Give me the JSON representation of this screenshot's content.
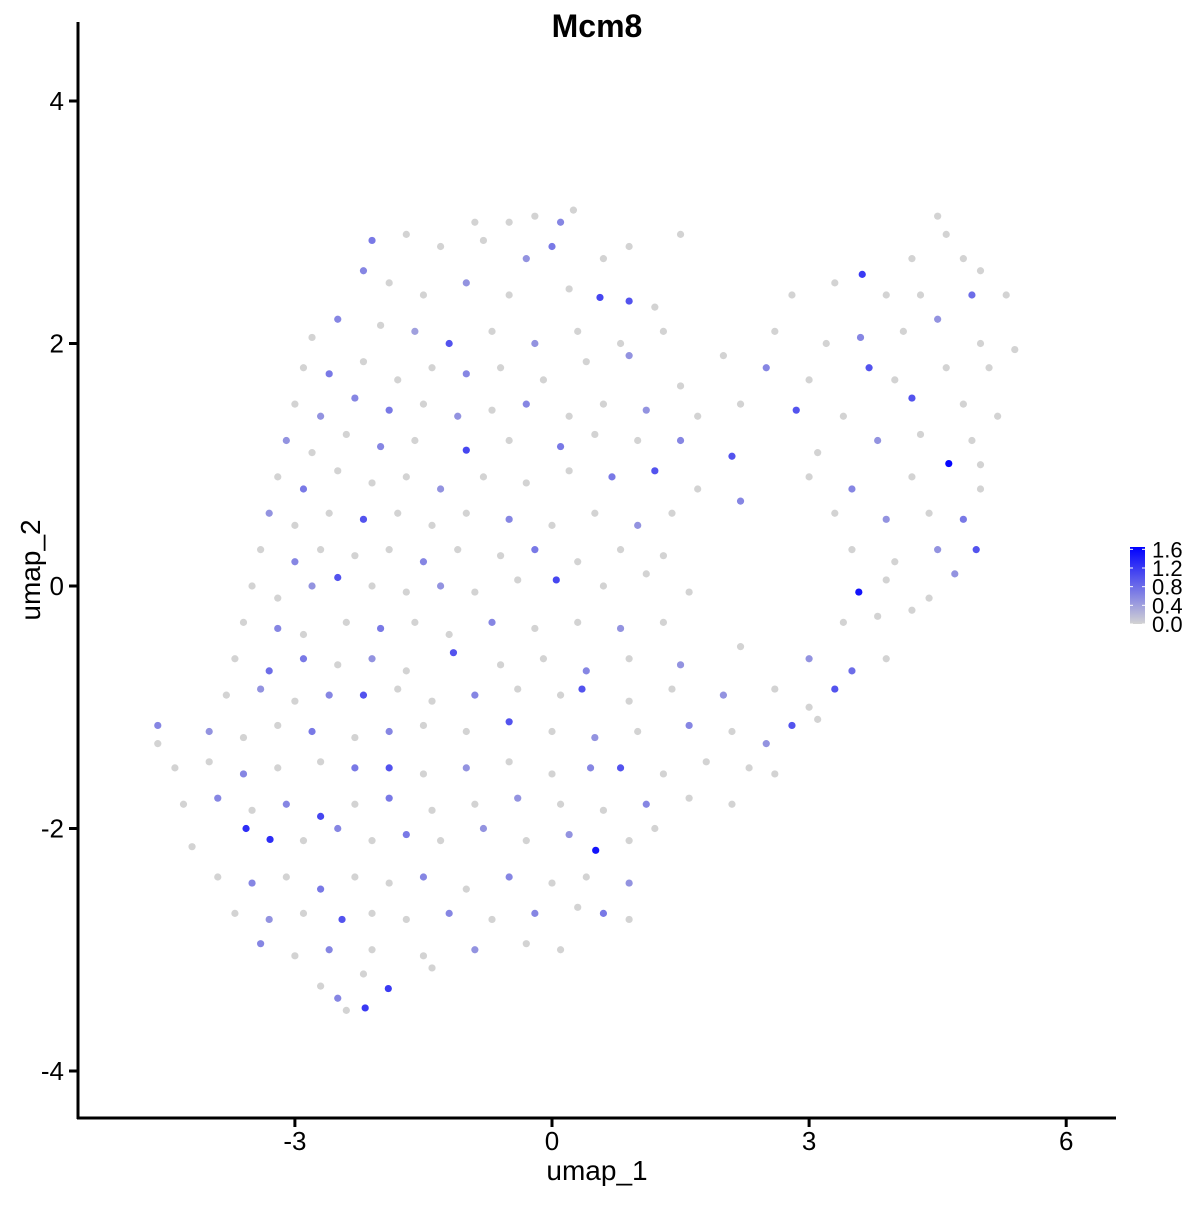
{
  "chart_data": {
    "type": "scatter",
    "title": "Mcm8",
    "xlabel": "umap_1",
    "ylabel": "umap_2",
    "xlim": [
      -5.53,
      6.57
    ],
    "ylim": [
      -4.39,
      4.65
    ],
    "xticks": [
      -3,
      0,
      3,
      6
    ],
    "yticks": [
      -4,
      -2,
      0,
      2,
      4
    ],
    "grid": false,
    "legend": {
      "placement": "right",
      "type": "colorbar",
      "ticks": [
        "0.0",
        "0.4",
        "0.8",
        "1.2",
        "1.6"
      ],
      "tick_values": [
        0,
        0.4,
        0.8,
        1.2,
        1.6
      ],
      "range": [
        0,
        1.65
      ],
      "low_color": "#d3d3d3",
      "high_color": "#0000ff"
    },
    "point_format": [
      "umap_1",
      "umap_2",
      "expression"
    ],
    "points": [
      [
        -0.5,
        3.0,
        0
      ],
      [
        -0.2,
        3.05,
        0
      ],
      [
        0.1,
        3.0,
        0.6
      ],
      [
        0.25,
        3.1,
        0
      ],
      [
        -0.9,
        3.0,
        0
      ],
      [
        4.5,
        3.05,
        0
      ],
      [
        4.6,
        2.9,
        0
      ],
      [
        -2.1,
        2.85,
        0.7
      ],
      [
        -1.7,
        2.9,
        0
      ],
      [
        -1.3,
        2.8,
        0
      ],
      [
        -0.8,
        2.85,
        0
      ],
      [
        -0.3,
        2.7,
        0.5
      ],
      [
        0.0,
        2.8,
        0.7
      ],
      [
        0.6,
        2.7,
        0
      ],
      [
        0.9,
        2.8,
        0
      ],
      [
        1.5,
        2.9,
        0
      ],
      [
        4.2,
        2.7,
        0
      ],
      [
        4.8,
        2.7,
        0
      ],
      [
        5.0,
        2.6,
        0
      ],
      [
        -2.2,
        2.6,
        0.6
      ],
      [
        -1.9,
        2.5,
        0
      ],
      [
        -1.5,
        2.4,
        0
      ],
      [
        -1.0,
        2.5,
        0.5
      ],
      [
        -0.5,
        2.4,
        0
      ],
      [
        0.2,
        2.45,
        0
      ],
      [
        0.56,
        2.38,
        1.1
      ],
      [
        0.9,
        2.35,
        1.0
      ],
      [
        1.2,
        2.3,
        0
      ],
      [
        3.3,
        2.5,
        0
      ],
      [
        3.62,
        2.57,
        1.2
      ],
      [
        3.9,
        2.4,
        0
      ],
      [
        4.3,
        2.4,
        0
      ],
      [
        4.9,
        2.4,
        0.8
      ],
      [
        5.3,
        2.4,
        0
      ],
      [
        2.8,
        2.4,
        0
      ],
      [
        -2.8,
        2.05,
        0
      ],
      [
        -2.5,
        2.2,
        0.6
      ],
      [
        -2.0,
        2.15,
        0
      ],
      [
        -1.6,
        2.1,
        0.4
      ],
      [
        -1.2,
        2.0,
        1.0
      ],
      [
        -0.7,
        2.1,
        0
      ],
      [
        -0.2,
        2.0,
        0.5
      ],
      [
        0.3,
        2.1,
        0
      ],
      [
        0.8,
        2.0,
        0
      ],
      [
        1.3,
        2.1,
        0
      ],
      [
        2.6,
        2.1,
        0
      ],
      [
        3.2,
        2.0,
        0
      ],
      [
        3.6,
        2.05,
        0.6
      ],
      [
        4.1,
        2.1,
        0
      ],
      [
        4.5,
        2.2,
        0.5
      ],
      [
        5.0,
        2.0,
        0
      ],
      [
        5.4,
        1.95,
        0
      ],
      [
        -2.9,
        1.8,
        0
      ],
      [
        -2.6,
        1.75,
        0.7
      ],
      [
        -2.2,
        1.85,
        0
      ],
      [
        -1.8,
        1.7,
        0
      ],
      [
        -1.4,
        1.8,
        0
      ],
      [
        -1.0,
        1.75,
        0.6
      ],
      [
        -0.6,
        1.8,
        0
      ],
      [
        -0.1,
        1.7,
        0
      ],
      [
        0.4,
        1.85,
        0
      ],
      [
        0.9,
        1.9,
        0.5
      ],
      [
        1.5,
        1.65,
        0
      ],
      [
        2.0,
        1.9,
        0
      ],
      [
        2.5,
        1.8,
        0.6
      ],
      [
        3.0,
        1.7,
        0
      ],
      [
        3.7,
        1.8,
        1.0
      ],
      [
        4.0,
        1.7,
        0
      ],
      [
        4.6,
        1.8,
        0
      ],
      [
        5.1,
        1.8,
        0
      ],
      [
        -3.0,
        1.5,
        0
      ],
      [
        -2.7,
        1.4,
        0.5
      ],
      [
        -2.3,
        1.55,
        0.6
      ],
      [
        -1.9,
        1.45,
        0.7
      ],
      [
        -1.5,
        1.5,
        0
      ],
      [
        -1.1,
        1.4,
        0.5
      ],
      [
        -0.7,
        1.45,
        0
      ],
      [
        -0.3,
        1.5,
        0.6
      ],
      [
        0.2,
        1.4,
        0
      ],
      [
        0.6,
        1.5,
        0
      ],
      [
        1.1,
        1.45,
        0.5
      ],
      [
        1.7,
        1.4,
        0
      ],
      [
        2.2,
        1.5,
        0
      ],
      [
        2.85,
        1.45,
        1.0
      ],
      [
        3.4,
        1.4,
        0
      ],
      [
        4.2,
        1.55,
        1.0
      ],
      [
        4.8,
        1.5,
        0
      ],
      [
        5.2,
        1.4,
        0
      ],
      [
        -3.1,
        1.2,
        0.5
      ],
      [
        -2.8,
        1.1,
        0
      ],
      [
        -2.4,
        1.25,
        0
      ],
      [
        -2.0,
        1.15,
        0.6
      ],
      [
        -1.6,
        1.2,
        0
      ],
      [
        -1.0,
        1.12,
        1.1
      ],
      [
        -0.5,
        1.2,
        0
      ],
      [
        0.1,
        1.15,
        0.7
      ],
      [
        0.5,
        1.25,
        0
      ],
      [
        1.0,
        1.2,
        0
      ],
      [
        1.5,
        1.2,
        0.6
      ],
      [
        2.1,
        1.07,
        1.0
      ],
      [
        3.1,
        1.1,
        0
      ],
      [
        3.8,
        1.2,
        0.5
      ],
      [
        4.3,
        1.25,
        0
      ],
      [
        4.9,
        1.2,
        0
      ],
      [
        -3.2,
        0.9,
        0
      ],
      [
        -2.9,
        0.8,
        0.7
      ],
      [
        -2.5,
        0.95,
        0
      ],
      [
        -2.1,
        0.85,
        0
      ],
      [
        -1.7,
        0.9,
        0
      ],
      [
        -1.3,
        0.8,
        0.5
      ],
      [
        -0.8,
        0.9,
        0
      ],
      [
        -0.3,
        0.85,
        0
      ],
      [
        0.2,
        0.95,
        0
      ],
      [
        0.7,
        0.9,
        0.7
      ],
      [
        1.2,
        0.95,
        1.0
      ],
      [
        1.7,
        0.8,
        0
      ],
      [
        2.2,
        0.7,
        0.6
      ],
      [
        3.0,
        0.9,
        0
      ],
      [
        3.5,
        0.8,
        0.6
      ],
      [
        4.63,
        1.01,
        1.6
      ],
      [
        4.2,
        0.9,
        0
      ],
      [
        5.0,
        1.0,
        0
      ],
      [
        -3.3,
        0.6,
        0.5
      ],
      [
        -3.0,
        0.5,
        0
      ],
      [
        -2.6,
        0.6,
        0
      ],
      [
        -2.2,
        0.55,
        1.0
      ],
      [
        -1.8,
        0.6,
        0
      ],
      [
        -1.4,
        0.5,
        0
      ],
      [
        -1.0,
        0.6,
        0
      ],
      [
        -0.5,
        0.55,
        0.6
      ],
      [
        0.0,
        0.5,
        0
      ],
      [
        0.5,
        0.6,
        0
      ],
      [
        1.0,
        0.5,
        0.5
      ],
      [
        1.4,
        0.6,
        0
      ],
      [
        3.3,
        0.6,
        0
      ],
      [
        3.9,
        0.55,
        0.5
      ],
      [
        4.4,
        0.6,
        0
      ],
      [
        4.8,
        0.55,
        0.7
      ],
      [
        5.0,
        0.8,
        0
      ],
      [
        -3.4,
        0.3,
        0
      ],
      [
        -3.0,
        0.2,
        0.6
      ],
      [
        -2.7,
        0.3,
        0
      ],
      [
        -2.3,
        0.25,
        0
      ],
      [
        -1.9,
        0.3,
        0
      ],
      [
        -1.5,
        0.2,
        0.6
      ],
      [
        -1.1,
        0.3,
        0
      ],
      [
        -0.6,
        0.25,
        0
      ],
      [
        -0.2,
        0.3,
        0.7
      ],
      [
        0.3,
        0.2,
        0
      ],
      [
        0.8,
        0.3,
        0
      ],
      [
        1.3,
        0.25,
        0
      ],
      [
        3.5,
        0.3,
        0
      ],
      [
        4.0,
        0.2,
        0
      ],
      [
        4.5,
        0.3,
        0.5
      ],
      [
        4.95,
        0.3,
        1.0
      ],
      [
        -3.5,
        0.0,
        0
      ],
      [
        -3.2,
        -0.1,
        0
      ],
      [
        -2.8,
        0.0,
        0.5
      ],
      [
        -2.5,
        0.07,
        1.0
      ],
      [
        -2.1,
        0.0,
        0
      ],
      [
        -1.7,
        -0.05,
        0
      ],
      [
        -1.3,
        0.0,
        0.5
      ],
      [
        -0.9,
        -0.05,
        0
      ],
      [
        -0.4,
        0.05,
        0
      ],
      [
        0.05,
        0.05,
        1.1
      ],
      [
        0.6,
        0.0,
        0
      ],
      [
        1.1,
        0.1,
        0
      ],
      [
        1.6,
        -0.05,
        0
      ],
      [
        3.58,
        -0.05,
        1.5
      ],
      [
        3.9,
        0.05,
        0
      ],
      [
        4.4,
        -0.1,
        0
      ],
      [
        4.7,
        0.1,
        0.5
      ],
      [
        -3.6,
        -0.3,
        0
      ],
      [
        -3.2,
        -0.35,
        0.6
      ],
      [
        -2.9,
        -0.4,
        0
      ],
      [
        -2.4,
        -0.3,
        0
      ],
      [
        -2.0,
        -0.35,
        0.7
      ],
      [
        -1.6,
        -0.3,
        0
      ],
      [
        -1.2,
        -0.4,
        0
      ],
      [
        -0.7,
        -0.3,
        0.6
      ],
      [
        -0.2,
        -0.35,
        0
      ],
      [
        0.3,
        -0.3,
        0
      ],
      [
        0.8,
        -0.35,
        0.5
      ],
      [
        1.3,
        -0.3,
        0
      ],
      [
        3.4,
        -0.3,
        0
      ],
      [
        3.8,
        -0.25,
        0
      ],
      [
        4.2,
        -0.2,
        0
      ],
      [
        -3.7,
        -0.6,
        0
      ],
      [
        -3.3,
        -0.7,
        0.8
      ],
      [
        -2.9,
        -0.6,
        0.7
      ],
      [
        -2.5,
        -0.65,
        0
      ],
      [
        -2.1,
        -0.6,
        0.5
      ],
      [
        -1.7,
        -0.7,
        0
      ],
      [
        -1.15,
        -0.55,
        1.0
      ],
      [
        -0.6,
        -0.65,
        0
      ],
      [
        -0.1,
        -0.6,
        0
      ],
      [
        0.4,
        -0.7,
        0.6
      ],
      [
        0.9,
        -0.6,
        0
      ],
      [
        1.5,
        -0.65,
        0.5
      ],
      [
        2.2,
        -0.5,
        0
      ],
      [
        3.0,
        -0.6,
        0.5
      ],
      [
        3.5,
        -0.7,
        0.8
      ],
      [
        3.9,
        -0.6,
        0
      ],
      [
        -3.8,
        -0.9,
        0
      ],
      [
        -3.4,
        -0.85,
        0.5
      ],
      [
        -3.0,
        -0.95,
        0
      ],
      [
        -2.6,
        -0.9,
        0.6
      ],
      [
        -2.2,
        -0.9,
        1.0
      ],
      [
        -1.8,
        -0.85,
        0
      ],
      [
        -1.4,
        -0.95,
        0
      ],
      [
        -0.9,
        -0.9,
        0.6
      ],
      [
        -0.4,
        -0.85,
        0
      ],
      [
        0.1,
        -0.9,
        0
      ],
      [
        0.35,
        -0.85,
        1.0
      ],
      [
        0.9,
        -0.95,
        0
      ],
      [
        1.4,
        -0.85,
        0
      ],
      [
        2.0,
        -0.9,
        0.5
      ],
      [
        2.6,
        -0.85,
        0
      ],
      [
        3.3,
        -0.85,
        1.0
      ],
      [
        3.0,
        -1.0,
        0
      ],
      [
        -4.6,
        -1.15,
        0.6
      ],
      [
        -4.6,
        -1.3,
        0
      ],
      [
        -4.0,
        -1.2,
        0.5
      ],
      [
        -3.6,
        -1.25,
        0
      ],
      [
        -3.2,
        -1.15,
        0
      ],
      [
        -2.8,
        -1.2,
        0.7
      ],
      [
        -2.3,
        -1.25,
        0
      ],
      [
        -1.9,
        -1.2,
        0.6
      ],
      [
        -1.5,
        -1.15,
        0
      ],
      [
        -1.0,
        -1.2,
        0
      ],
      [
        -0.5,
        -1.12,
        1.0
      ],
      [
        0.0,
        -1.2,
        0
      ],
      [
        0.5,
        -1.25,
        0.5
      ],
      [
        1.0,
        -1.2,
        0
      ],
      [
        1.6,
        -1.15,
        0.6
      ],
      [
        2.1,
        -1.2,
        0
      ],
      [
        2.5,
        -1.3,
        0.5
      ],
      [
        2.8,
        -1.15,
        1.0
      ],
      [
        3.1,
        -1.1,
        0
      ],
      [
        -4.4,
        -1.5,
        0
      ],
      [
        -4.0,
        -1.45,
        0
      ],
      [
        -3.6,
        -1.55,
        0.6
      ],
      [
        -3.2,
        -1.5,
        0
      ],
      [
        -2.7,
        -1.45,
        0
      ],
      [
        -2.3,
        -1.5,
        0.7
      ],
      [
        -1.9,
        -1.5,
        1.0
      ],
      [
        -1.5,
        -1.55,
        0
      ],
      [
        -1.0,
        -1.5,
        0.5
      ],
      [
        -0.5,
        -1.45,
        0
      ],
      [
        0.0,
        -1.55,
        0
      ],
      [
        0.45,
        -1.5,
        0.6
      ],
      [
        0.8,
        -1.5,
        1.0
      ],
      [
        1.3,
        -1.55,
        0
      ],
      [
        1.8,
        -1.45,
        0
      ],
      [
        2.3,
        -1.5,
        0
      ],
      [
        2.6,
        -1.55,
        0
      ],
      [
        -4.3,
        -1.8,
        0
      ],
      [
        -3.9,
        -1.75,
        0.6
      ],
      [
        -3.5,
        -1.85,
        0
      ],
      [
        -3.1,
        -1.8,
        0.6
      ],
      [
        -2.7,
        -1.9,
        1.1
      ],
      [
        -2.3,
        -1.8,
        0
      ],
      [
        -1.9,
        -1.75,
        0.7
      ],
      [
        -1.4,
        -1.85,
        0
      ],
      [
        -0.9,
        -1.8,
        0
      ],
      [
        -0.4,
        -1.75,
        0.5
      ],
      [
        0.1,
        -1.8,
        0
      ],
      [
        0.6,
        -1.85,
        0
      ],
      [
        1.1,
        -1.8,
        0.6
      ],
      [
        1.6,
        -1.75,
        0
      ],
      [
        2.1,
        -1.8,
        0
      ],
      [
        -4.2,
        -2.15,
        0
      ],
      [
        -3.57,
        -2.0,
        1.3
      ],
      [
        -3.29,
        -2.09,
        1.3
      ],
      [
        -2.9,
        -2.1,
        0
      ],
      [
        -2.5,
        -2.0,
        0.6
      ],
      [
        -2.1,
        -2.1,
        0
      ],
      [
        -1.7,
        -2.05,
        0.7
      ],
      [
        -1.3,
        -2.1,
        0
      ],
      [
        -0.8,
        -2.0,
        0.5
      ],
      [
        -0.3,
        -2.1,
        0
      ],
      [
        0.2,
        -2.05,
        0.5
      ],
      [
        0.51,
        -2.18,
        1.5
      ],
      [
        0.9,
        -2.1,
        0
      ],
      [
        1.2,
        -2.0,
        0
      ],
      [
        -3.9,
        -2.4,
        0
      ],
      [
        -3.5,
        -2.45,
        0.6
      ],
      [
        -3.1,
        -2.4,
        0
      ],
      [
        -2.7,
        -2.5,
        0.7
      ],
      [
        -2.3,
        -2.4,
        0
      ],
      [
        -1.9,
        -2.45,
        0
      ],
      [
        -1.5,
        -2.4,
        0.6
      ],
      [
        -1.0,
        -2.5,
        0
      ],
      [
        -0.5,
        -2.4,
        0.6
      ],
      [
        0.0,
        -2.45,
        0
      ],
      [
        0.4,
        -2.4,
        0
      ],
      [
        0.9,
        -2.45,
        0.5
      ],
      [
        -3.7,
        -2.7,
        0
      ],
      [
        -3.3,
        -2.75,
        0.5
      ],
      [
        -2.9,
        -2.7,
        0
      ],
      [
        -2.45,
        -2.75,
        1.0
      ],
      [
        -2.1,
        -2.7,
        0
      ],
      [
        -1.7,
        -2.75,
        0
      ],
      [
        -1.2,
        -2.7,
        0.6
      ],
      [
        -0.7,
        -2.75,
        0
      ],
      [
        -0.2,
        -2.7,
        0.6
      ],
      [
        0.3,
        -2.65,
        0
      ],
      [
        0.6,
        -2.7,
        0.7
      ],
      [
        0.9,
        -2.75,
        0
      ],
      [
        -3.4,
        -2.95,
        0.6
      ],
      [
        -3.0,
        -3.05,
        0
      ],
      [
        -2.6,
        -3.0,
        0.6
      ],
      [
        -2.1,
        -3.0,
        0
      ],
      [
        -1.5,
        -3.05,
        0
      ],
      [
        -0.9,
        -3.0,
        0.5
      ],
      [
        -0.3,
        -2.95,
        0
      ],
      [
        0.1,
        -3.0,
        0
      ],
      [
        -2.7,
        -3.3,
        0
      ],
      [
        -2.5,
        -3.4,
        0.6
      ],
      [
        -2.2,
        -3.2,
        0
      ],
      [
        -1.91,
        -3.32,
        1.2
      ],
      [
        -2.18,
        -3.48,
        1.2
      ],
      [
        -2.4,
        -3.5,
        0
      ],
      [
        -1.4,
        -3.15,
        0
      ]
    ]
  }
}
